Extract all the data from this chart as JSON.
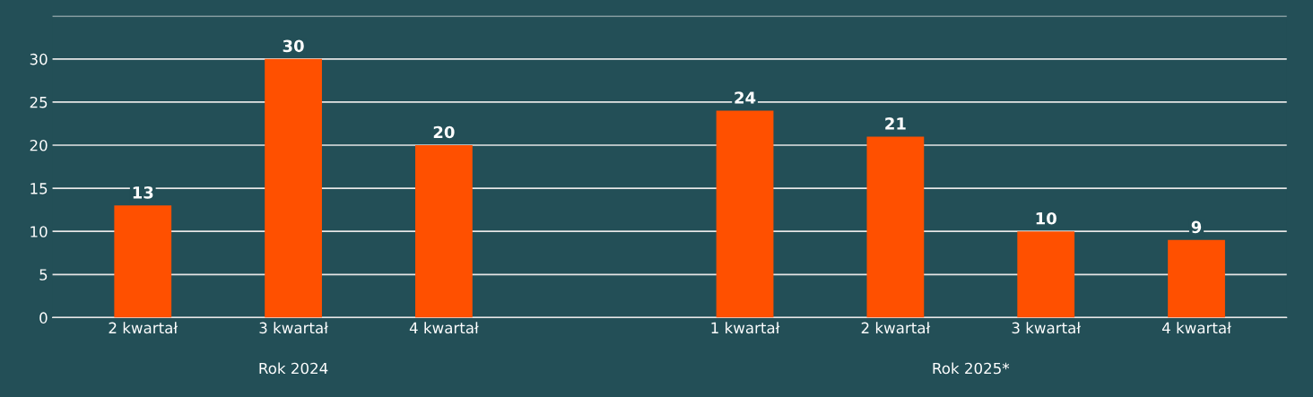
{
  "chart_data": {
    "type": "bar",
    "categories": [
      "2 kwartał",
      "3 kwartał",
      "4 kwartał",
      null,
      "1 kwartał",
      "2 kwartał",
      "3 kwartał",
      "4 kwartał"
    ],
    "values": [
      13,
      30,
      20,
      null,
      24,
      21,
      10,
      9
    ],
    "color": "#ff5000",
    "ylim": [
      0,
      35
    ],
    "yticks": [
      0,
      5,
      10,
      15,
      20,
      25,
      30,
      {
        "value": 35,
        "label": null
      }
    ],
    "grid": "y",
    "data_labels": true,
    "annotations": [
      "Rok 2024",
      "Rok 2025*"
    ]
  }
}
